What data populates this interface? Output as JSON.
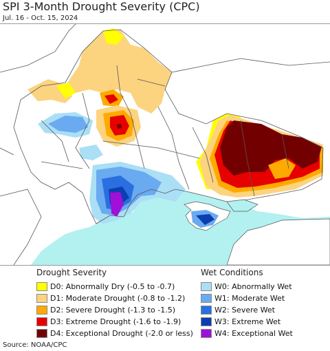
{
  "title": "SPI 3-Month Drought Severity (CPC)",
  "subtitle": "Jul. 16 - Oct. 15, 2024",
  "source": "Source: NOAA/CPC",
  "drought_legend": {
    "title": "Drought Severity",
    "items": [
      {
        "label": "D0: Abnormally Dry (-0.5 to -0.7)",
        "color": "#ffff00"
      },
      {
        "label": "D1: Moderate Drought (-0.8 to -1.2)",
        "color": "#fcd37f"
      },
      {
        "label": "D2: Severe Drought (-1.3 to -1.5)",
        "color": "#ffaa00"
      },
      {
        "label": "D3: Extreme Drought (-1.6 to -1.9)",
        "color": "#e60000"
      },
      {
        "label": "D4: Exceptional Drought (-2.0 or less)",
        "color": "#730000"
      }
    ]
  },
  "wet_legend": {
    "title": "Wet Conditions",
    "items": [
      {
        "label": "W0: Abnormally Wet",
        "color": "#aadff5"
      },
      {
        "label": "W1: Moderate Wet",
        "color": "#6aaaf0"
      },
      {
        "label": "W2: Severe Wet",
        "color": "#2a6fe0"
      },
      {
        "label": "W3: Extreme Wet",
        "color": "#0b3fb0"
      },
      {
        "label": "W4: Exceptional Wet",
        "color": "#a010d8"
      }
    ]
  },
  "map": {
    "sea_color": "#b3f0f0",
    "land_color": "#ffffff",
    "border_color": "#555555"
  }
}
